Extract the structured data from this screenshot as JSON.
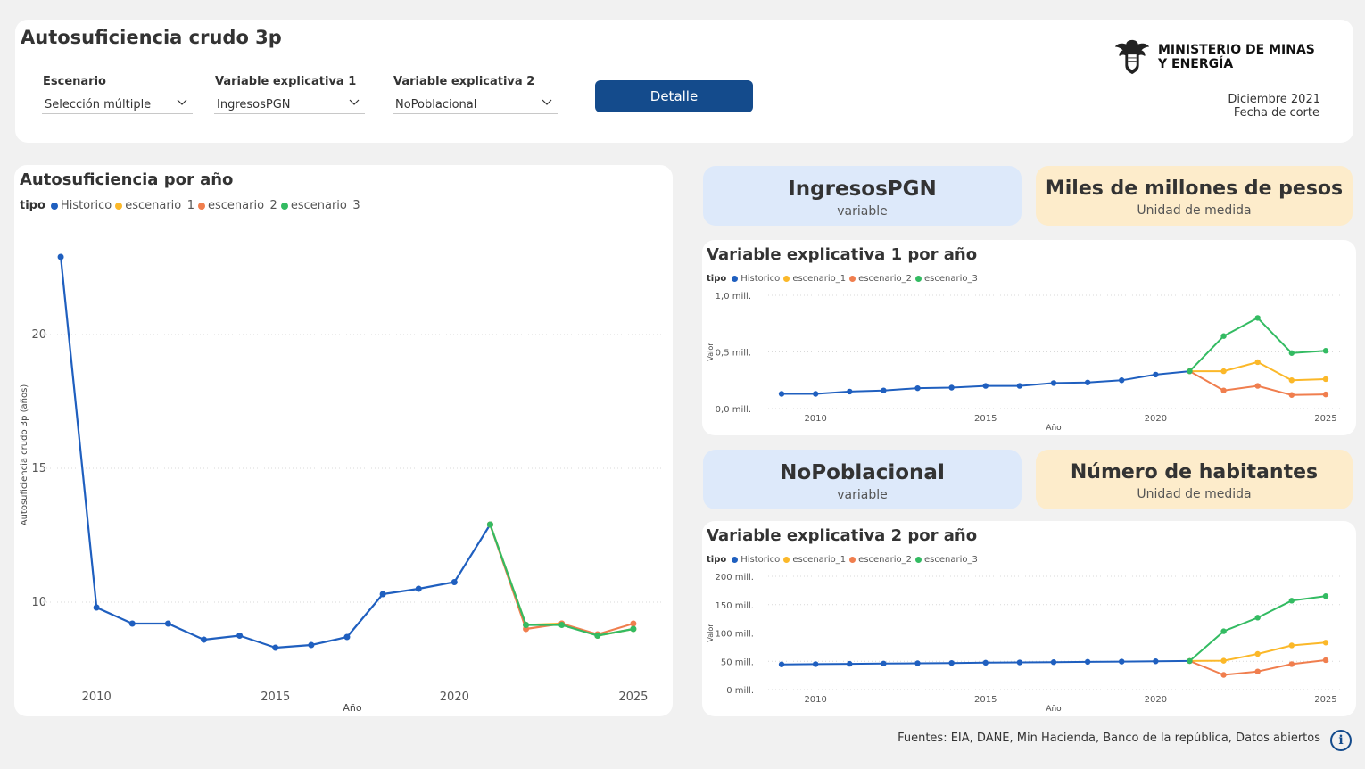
{
  "header": {
    "title": "Autosuficiencia crudo 3p",
    "filters": [
      {
        "label": "Escenario",
        "value": "Selección múltiple"
      },
      {
        "label": "Variable explicativa 1",
        "value": "IngresosPGN"
      },
      {
        "label": "Variable explicativa 2",
        "value": "NoPoblacional"
      }
    ],
    "button_label": "Detalle",
    "logo_line1": "MINISTERIO DE MINAS",
    "logo_line2": "Y ENERGÍA",
    "date": "Diciembre 2021",
    "date_caption": "Fecha de corte"
  },
  "kpi1": {
    "value": "IngresosPGN",
    "caption": "variable"
  },
  "kpi2": {
    "value": "Miles de millones de pesos",
    "caption": "Unidad de medida"
  },
  "kpi3": {
    "value": "NoPoblacional",
    "caption": "variable"
  },
  "kpi4": {
    "value": "Número de habitantes",
    "caption": "Unidad de medida"
  },
  "colors": {
    "Historico": "#1f5fbf",
    "escenario_1": "#fbb829",
    "escenario_2": "#f07e4e",
    "escenario_3": "#33bb62"
  },
  "footer": {
    "sources": "Fuentes: EIA, DANE, Min Hacienda, Banco de la república, Datos abiertos",
    "info_glyph": "i"
  },
  "chart_data": [
    {
      "id": "main",
      "type": "line",
      "title": "Autosuficiencia por año",
      "legend_title": "tipo",
      "xlabel": "Año",
      "ylabel": "Autosuficiencia crudo 3p (años)",
      "xlim": [
        2008.5,
        2025.8
      ],
      "ylim": [
        7.0,
        24.0
      ],
      "xticks": [
        2010,
        2015,
        2020,
        2025
      ],
      "yticks": [
        10,
        15,
        20
      ],
      "ytick_labels": [
        "10",
        "15",
        "20"
      ],
      "series": [
        {
          "name": "Historico",
          "x": [
            2009,
            2010,
            2011,
            2012,
            2013,
            2014,
            2015,
            2016,
            2017,
            2018,
            2019,
            2020,
            2021
          ],
          "y": [
            22.9,
            9.8,
            9.2,
            9.2,
            8.6,
            8.75,
            8.3,
            8.4,
            8.7,
            10.3,
            10.5,
            10.75,
            12.9
          ]
        },
        {
          "name": "escenario_1",
          "x": [
            2021,
            2022,
            2023,
            2024,
            2025
          ],
          "y": [
            12.9,
            9.15,
            9.2,
            8.75,
            9.0
          ]
        },
        {
          "name": "escenario_2",
          "x": [
            2021,
            2022,
            2023,
            2024,
            2025
          ],
          "y": [
            12.9,
            9.0,
            9.2,
            8.8,
            9.2
          ]
        },
        {
          "name": "escenario_3",
          "x": [
            2021,
            2022,
            2023,
            2024,
            2025
          ],
          "y": [
            12.9,
            9.15,
            9.15,
            8.75,
            9.0
          ]
        }
      ]
    },
    {
      "id": "v1",
      "type": "line",
      "title": "Variable explicativa 1 por año",
      "legend_title": "tipo",
      "xlabel": "Año",
      "ylabel": "Valor",
      "xlim": [
        2008.5,
        2025.5
      ],
      "ylim": [
        0,
        1.0
      ],
      "xticks": [
        2010,
        2015,
        2020,
        2025
      ],
      "yticks": [
        0,
        0.5,
        1.0
      ],
      "ytick_labels": [
        "0,0 mill.",
        "0,5 mill.",
        "1,0 mill."
      ],
      "series": [
        {
          "name": "Historico",
          "x": [
            2009,
            2010,
            2011,
            2012,
            2013,
            2014,
            2015,
            2016,
            2017,
            2018,
            2019,
            2020,
            2021
          ],
          "y": [
            0.13,
            0.13,
            0.15,
            0.16,
            0.18,
            0.185,
            0.2,
            0.2,
            0.225,
            0.23,
            0.25,
            0.3,
            0.33
          ]
        },
        {
          "name": "escenario_1",
          "x": [
            2021,
            2022,
            2023,
            2024,
            2025
          ],
          "y": [
            0.33,
            0.33,
            0.41,
            0.25,
            0.26
          ]
        },
        {
          "name": "escenario_2",
          "x": [
            2021,
            2022,
            2023,
            2024,
            2025
          ],
          "y": [
            0.33,
            0.16,
            0.2,
            0.12,
            0.125
          ]
        },
        {
          "name": "escenario_3",
          "x": [
            2021,
            2022,
            2023,
            2024,
            2025
          ],
          "y": [
            0.33,
            0.64,
            0.8,
            0.49,
            0.51
          ]
        }
      ]
    },
    {
      "id": "v2",
      "type": "line",
      "title": "Variable explicativa 2 por año",
      "legend_title": "tipo",
      "xlabel": "Año",
      "ylabel": "Valor",
      "xlim": [
        2008.5,
        2025.5
      ],
      "ylim": [
        0,
        200
      ],
      "xticks": [
        2010,
        2015,
        2020,
        2025
      ],
      "yticks": [
        0,
        50,
        100,
        150,
        200
      ],
      "ytick_labels": [
        "0 mill.",
        "50 mill.",
        "100 mill.",
        "150 mill.",
        "200 mill."
      ],
      "series": [
        {
          "name": "Historico",
          "x": [
            2009,
            2010,
            2011,
            2012,
            2013,
            2014,
            2015,
            2016,
            2017,
            2018,
            2019,
            2020,
            2021
          ],
          "y": [
            44.5,
            45,
            45.5,
            46,
            46.5,
            47,
            47.5,
            48,
            48.5,
            49,
            49.5,
            50,
            50.5
          ]
        },
        {
          "name": "escenario_1",
          "x": [
            2021,
            2022,
            2023,
            2024,
            2025
          ],
          "y": [
            50.5,
            51,
            63,
            78,
            83
          ]
        },
        {
          "name": "escenario_2",
          "x": [
            2021,
            2022,
            2023,
            2024,
            2025
          ],
          "y": [
            50.5,
            26,
            32,
            45,
            52
          ]
        },
        {
          "name": "escenario_3",
          "x": [
            2021,
            2022,
            2023,
            2024,
            2025
          ],
          "y": [
            50.5,
            103,
            127,
            157,
            165
          ]
        }
      ]
    }
  ]
}
